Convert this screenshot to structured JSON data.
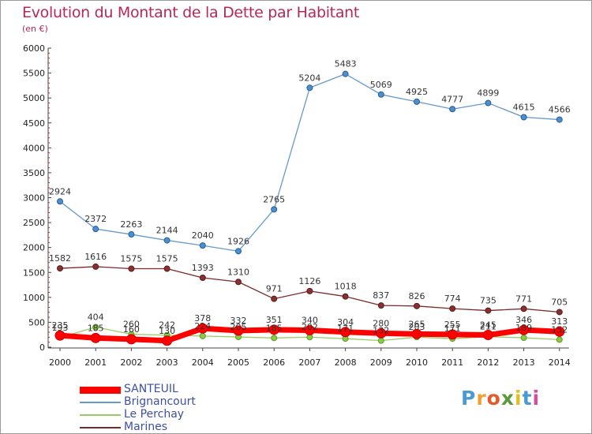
{
  "title": "Evolution du Montant de la Dette par Habitant",
  "subtitle": "(en €)",
  "brand": {
    "text": "Proxiti",
    "letters": [
      {
        "ch": "P",
        "color": "#4a9ad6"
      },
      {
        "ch": "r",
        "color": "#f0a030"
      },
      {
        "ch": "o",
        "color": "#e25a2b"
      },
      {
        "ch": "x",
        "color": "#5a9a3c"
      },
      {
        "ch": "i",
        "color": "#e0c020"
      },
      {
        "ch": "t",
        "color": "#4a9ad6"
      },
      {
        "ch": "i",
        "color": "#d94aa0"
      }
    ]
  },
  "chart_data": {
    "type": "line",
    "title": "Evolution du Montant de la Dette par Habitant",
    "subtitle": "(en €)",
    "xlabel": "",
    "ylabel": "",
    "categories": [
      "2000",
      "2001",
      "2002",
      "2003",
      "2004",
      "2005",
      "2006",
      "2007",
      "2008",
      "2009",
      "2010",
      "2011",
      "2012",
      "2013",
      "2014"
    ],
    "ylim": [
      0,
      6000
    ],
    "yticks": [
      0,
      500,
      1000,
      1500,
      2000,
      2500,
      3000,
      3500,
      4000,
      4500,
      5000,
      5500,
      6000
    ],
    "grid": false,
    "legend_position": "bottom-left",
    "series": [
      {
        "name": "SANTEUIL",
        "color": "#ff0000",
        "width": 7,
        "marker_color": "#ff0000",
        "marker_edge": "#cc0000",
        "marker_r": 6,
        "labels": false,
        "values": [
          235,
          185,
          160,
          130,
          378,
          332,
          351,
          340,
          304,
          280,
          265,
          255,
          245,
          346,
          313
        ]
      },
      {
        "name": "Brignancourt",
        "color": "#6699cc",
        "width": 1.3,
        "marker_color": "#4a90d0",
        "marker_edge": "#2a5a9a",
        "marker_r": 3.5,
        "labels": true,
        "values": [
          2924,
          2372,
          2263,
          2144,
          2040,
          1926,
          2765,
          5204,
          5483,
          5069,
          4925,
          4777,
          4899,
          4615,
          4566
        ]
      },
      {
        "name": "Le Perchay",
        "color": "#99cc66",
        "width": 1.3,
        "marker_color": "#88cc44",
        "marker_edge": "#5a9a2a",
        "marker_r": 3.5,
        "labels": true,
        "values": [
          193,
          404,
          260,
          242,
          224,
          205,
          185,
          202,
          171,
          132,
          203,
          171,
          211,
          189,
          152
        ]
      },
      {
        "name": "Marines",
        "color": "#7a2a2a",
        "width": 1.3,
        "marker_color": "#8a3030",
        "marker_edge": "#5a1a1a",
        "marker_r": 3.5,
        "labels": true,
        "values": [
          1582,
          1616,
          1575,
          1575,
          1393,
          1310,
          971,
          1126,
          1018,
          837,
          826,
          774,
          735,
          771,
          705
        ]
      }
    ],
    "point_labels": [
      {
        "x": 0,
        "text": "235"
      },
      {
        "x": 1,
        "text": "185"
      },
      {
        "x": 2,
        "text": "160"
      },
      {
        "x": 3,
        "text": "130"
      },
      {
        "x": 4,
        "text": "378"
      },
      {
        "x": 5,
        "text": "332"
      },
      {
        "x": 6,
        "text": "351"
      },
      {
        "x": 7,
        "text": "340"
      },
      {
        "x": 8,
        "text": "304"
      },
      {
        "x": 9,
        "text": "280"
      },
      {
        "x": 10,
        "text": "265"
      },
      {
        "x": 11,
        "text": "255"
      },
      {
        "x": 12,
        "text": "245"
      },
      {
        "x": 13,
        "text": "346"
      },
      {
        "x": 14,
        "text": "313"
      }
    ]
  }
}
